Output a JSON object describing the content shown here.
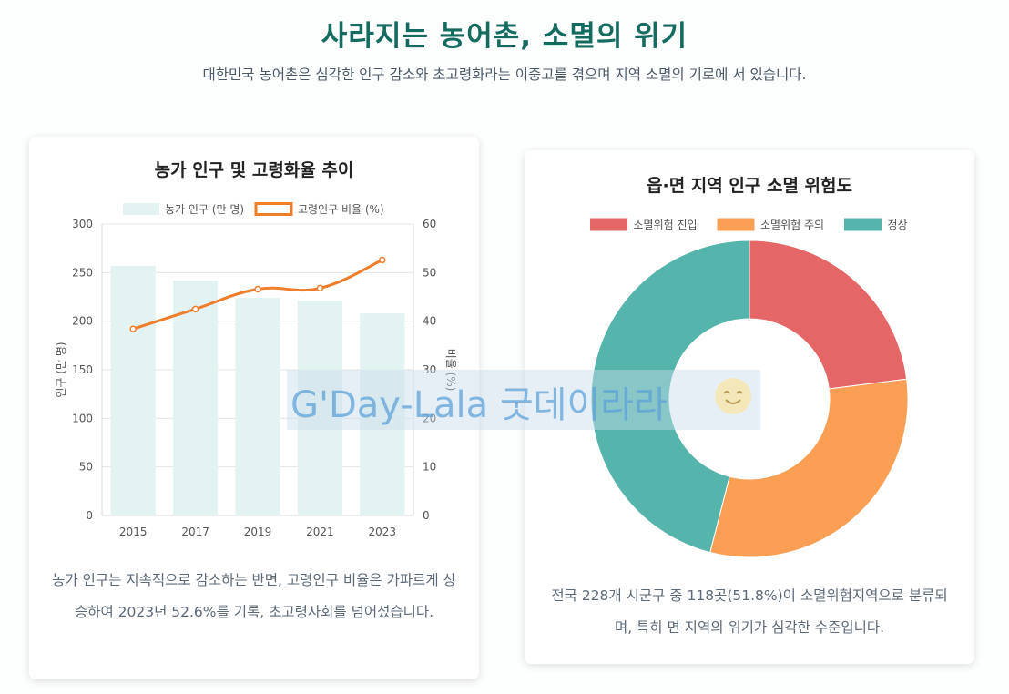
{
  "header": {
    "title": "사라지는 농어촌, 소멸의 위기",
    "subtitle": "대한민국 농어촌은 심각한 인구 감소와 초고령화라는 이중고를 겪으며 지역 소멸의 기로에 서 있습니다."
  },
  "watermark": {
    "text": "G'Day-Lala 굿데이라라"
  },
  "colors": {
    "title": "#146c60",
    "bar_fill": "#e3f3f1",
    "line": "#ef7d2a",
    "danger": "#e56666",
    "caution": "#fb9f55",
    "normal": "#55b4ab"
  },
  "chart_data": [
    {
      "type": "bar+line",
      "title": "농가 인구 및 고령화율 추이",
      "categories": [
        "2015",
        "2017",
        "2019",
        "2021",
        "2023"
      ],
      "series": [
        {
          "name": "농가 인구 (만 명)",
          "type": "bar",
          "axis": "left",
          "values": [
            257,
            242,
            224,
            221,
            208
          ]
        },
        {
          "name": "고령인구 비율 (%)",
          "type": "line",
          "axis": "right",
          "values": [
            38.4,
            42.5,
            46.6,
            46.8,
            52.6
          ]
        }
      ],
      "y_left": {
        "label": "인구 (만 명)",
        "min": 0,
        "max": 300,
        "ticks": [
          0,
          50,
          100,
          150,
          200,
          250,
          300
        ]
      },
      "y_right": {
        "label": "비율 (%)",
        "min": 0,
        "max": 60,
        "ticks": [
          0,
          10,
          20,
          30,
          40,
          50,
          60
        ]
      },
      "legend": "top",
      "description": "농가 인구는 지속적으로 감소하는 반면, 고령인구 비율은 가파르게 상승하여 2023년 52.6%를 기록, 초고령사회를 넘어섰습니다."
    },
    {
      "type": "doughnut",
      "title": "읍·면 지역 인구 소멸 위험도",
      "labels": [
        "소멸위험 진입",
        "소멸위험 주의",
        "정상"
      ],
      "values": [
        23,
        31,
        46
      ],
      "legend": "top",
      "description": "전국 228개 시군구 중 118곳(51.8%)이 소멸위험지역으로 분류되며, 특히 면 지역의 위기가 심각한 수준입니다."
    }
  ]
}
